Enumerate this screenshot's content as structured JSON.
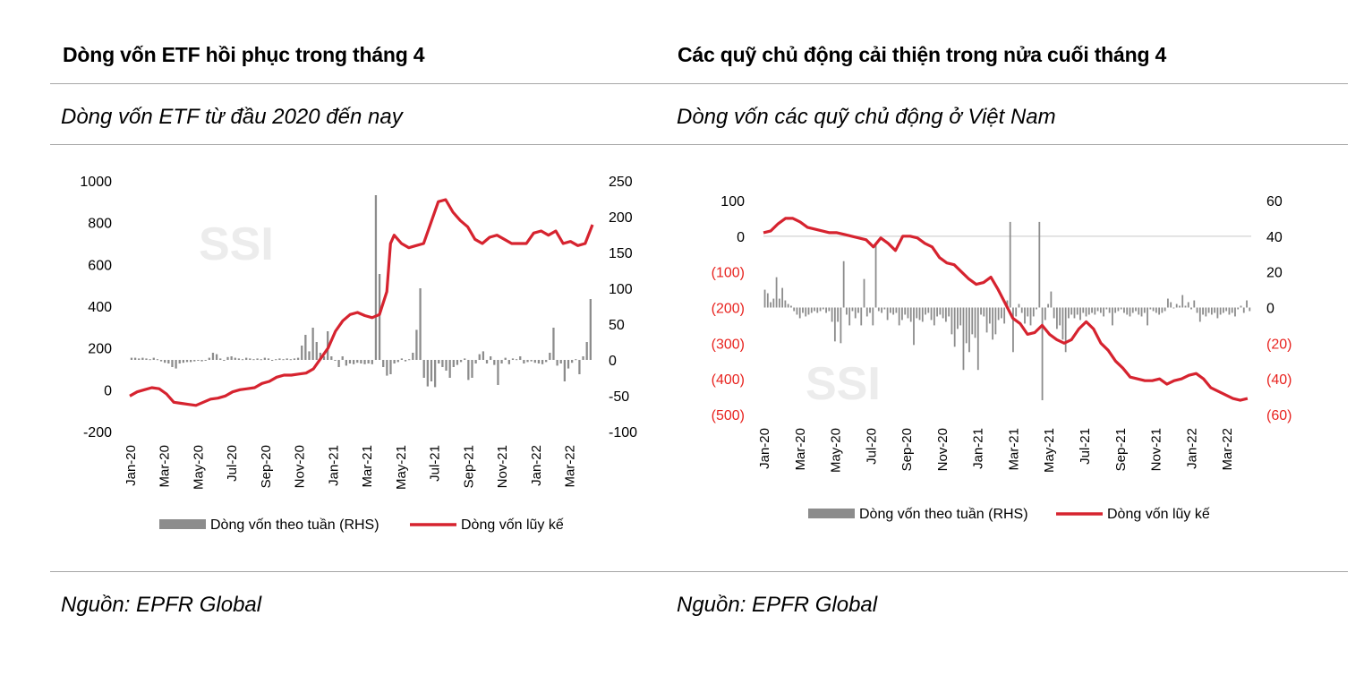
{
  "left": {
    "title": "Dòng vốn ETF hồi phục trong tháng 4",
    "subtitle": "Dòng vốn ETF từ đầu 2020 đến nay",
    "source": "Nguồn: EPFR Global",
    "watermark": "SSI"
  },
  "right": {
    "title": "Các quỹ chủ động cải thiện trong nửa cuối tháng 4",
    "subtitle": "Dòng vốn các quỹ chủ động ở Việt Nam",
    "source": "Nguồn: EPFR Global",
    "watermark": "SSI"
  },
  "chart_data": [
    {
      "type": "bar+line",
      "x_labels": [
        "Jan-20",
        "Mar-20",
        "May-20",
        "Jul-20",
        "Sep-20",
        "Nov-20",
        "Jan-21",
        "Mar-21",
        "May-21",
        "Jul-21",
        "Sep-21",
        "Nov-21",
        "Jan-22",
        "Mar-22"
      ],
      "y_left": {
        "ticks": [
          "1000",
          "800",
          "600",
          "400",
          "200",
          "0",
          "-200"
        ],
        "range": [
          -200,
          1000
        ]
      },
      "y_right": {
        "ticks": [
          "250",
          "200",
          "150",
          "100",
          "50",
          "0",
          "-50",
          "-100"
        ],
        "range": [
          -100,
          250
        ]
      },
      "series": [
        {
          "name": "Dòng vốn theo tuần (RHS)",
          "type": "bar",
          "axis": "right",
          "color": "#8c8c8c",
          "values": [
            3,
            3,
            2,
            3,
            2,
            1,
            3,
            1,
            -2,
            -4,
            -5,
            -10,
            -12,
            -5,
            -4,
            -3,
            -3,
            -2,
            -1,
            -2,
            -1,
            3,
            10,
            8,
            2,
            -1,
            4,
            5,
            3,
            2,
            1,
            3,
            2,
            1,
            2,
            1,
            3,
            2,
            -1,
            1,
            2,
            1,
            2,
            1,
            2,
            3,
            20,
            35,
            12,
            45,
            25,
            10,
            5,
            40,
            5,
            0,
            -10,
            5,
            -8,
            -5,
            -6,
            -4,
            -5,
            -6,
            -5,
            -6,
            230,
            120,
            -10,
            -22,
            -20,
            -5,
            -3,
            2,
            -2,
            1,
            10,
            42,
            100,
            -25,
            -37,
            -30,
            -38,
            -5,
            -10,
            -15,
            -25,
            -10,
            -7,
            -3,
            2,
            -28,
            -25,
            -5,
            8,
            12,
            -5,
            5,
            -7,
            -35,
            -5,
            3,
            -6,
            2,
            1,
            5,
            -5,
            -3,
            -2,
            -4,
            -5,
            -6,
            -3,
            10,
            45,
            -8,
            -5,
            -30,
            -12,
            -4,
            1,
            -20,
            5,
            25,
            85
          ],
          "scale_note": "weekly"
        },
        {
          "name": "Dòng vốn lũy kế",
          "type": "line",
          "axis": "left",
          "color": "#d6232f",
          "points": [
            [
              0,
              -30
            ],
            [
              2,
              -10
            ],
            [
              4,
              0
            ],
            [
              6,
              10
            ],
            [
              8,
              5
            ],
            [
              10,
              -20
            ],
            [
              12,
              -60
            ],
            [
              14,
              -65
            ],
            [
              16,
              -70
            ],
            [
              18,
              -75
            ],
            [
              20,
              -60
            ],
            [
              22,
              -45
            ],
            [
              24,
              -40
            ],
            [
              26,
              -30
            ],
            [
              28,
              -10
            ],
            [
              30,
              0
            ],
            [
              32,
              5
            ],
            [
              34,
              10
            ],
            [
              36,
              30
            ],
            [
              38,
              40
            ],
            [
              40,
              60
            ],
            [
              42,
              70
            ],
            [
              44,
              70
            ],
            [
              46,
              75
            ],
            [
              48,
              80
            ],
            [
              50,
              100
            ],
            [
              52,
              150
            ],
            [
              54,
              200
            ],
            [
              56,
              280
            ],
            [
              58,
              330
            ],
            [
              60,
              360
            ],
            [
              62,
              370
            ],
            [
              64,
              355
            ],
            [
              66,
              345
            ],
            [
              68,
              360
            ],
            [
              70,
              470
            ],
            [
              71,
              700
            ],
            [
              72,
              740
            ],
            [
              74,
              700
            ],
            [
              76,
              680
            ],
            [
              78,
              690
            ],
            [
              80,
              700
            ],
            [
              82,
              800
            ],
            [
              84,
              900
            ],
            [
              86,
              910
            ],
            [
              88,
              850
            ],
            [
              90,
              810
            ],
            [
              92,
              780
            ],
            [
              94,
              720
            ],
            [
              96,
              700
            ],
            [
              98,
              730
            ],
            [
              100,
              740
            ],
            [
              102,
              720
            ],
            [
              104,
              700
            ],
            [
              106,
              700
            ],
            [
              108,
              700
            ],
            [
              110,
              750
            ],
            [
              112,
              760
            ],
            [
              114,
              740
            ],
            [
              116,
              760
            ],
            [
              118,
              700
            ],
            [
              120,
              710
            ],
            [
              122,
              690
            ],
            [
              124,
              700
            ],
            [
              126,
              790
            ]
          ],
          "x_index_count": 127
        }
      ],
      "legend": {
        "position": "bottom",
        "items": [
          "Dòng vốn theo tuần (RHS)",
          "Dòng vốn lũy kế"
        ]
      }
    },
    {
      "type": "bar+line",
      "x_labels": [
        "Jan-20",
        "Mar-20",
        "May-20",
        "Jul-20",
        "Sep-20",
        "Nov-20",
        "Jan-21",
        "Mar-21",
        "May-21",
        "Jul-21",
        "Sep-21",
        "Nov-21",
        "Jan-22",
        "Mar-22"
      ],
      "y_left": {
        "ticks": [
          "100",
          "0",
          "(100)",
          "(200)",
          "(300)",
          "(400)",
          "(500)"
        ],
        "range": [
          -500,
          100
        ],
        "negative_color": "#e8231f"
      },
      "y_right": {
        "ticks": [
          "60",
          "40",
          "20",
          "0",
          "(20)",
          "(40)",
          "(60)"
        ],
        "range": [
          -60,
          60
        ],
        "negative_color": "#e8231f"
      },
      "series": [
        {
          "name": "Dòng vốn theo tuần (RHS)",
          "type": "bar",
          "axis": "right",
          "color": "#8c8c8c",
          "values": [
            10,
            8,
            3,
            5,
            17,
            5,
            11,
            4,
            2,
            1,
            -2,
            -4,
            -6,
            -3,
            -5,
            -4,
            -3,
            -2,
            -3,
            -2,
            -1,
            -3,
            -2,
            -8,
            -19,
            -8,
            -20,
            26,
            -4,
            -10,
            -2,
            -6,
            -3,
            -10,
            16,
            -5,
            -3,
            -10,
            36,
            -2,
            -3,
            -1,
            -7,
            -3,
            -4,
            -3,
            -10,
            -7,
            -4,
            -6,
            -8,
            -21,
            -6,
            -7,
            -8,
            -4,
            -3,
            -7,
            -10,
            -5,
            -4,
            -6,
            -8,
            -5,
            -15,
            -22,
            -12,
            -10,
            -35,
            -20,
            -25,
            -15,
            -17,
            -35,
            -4,
            -5,
            -14,
            -9,
            -18,
            -15,
            -7,
            -6,
            -9,
            4,
            48,
            -25,
            -5,
            2,
            -3,
            -9,
            -5,
            -10,
            -5,
            -1,
            48,
            -52,
            -7,
            2,
            9,
            -6,
            -12,
            -10,
            -18,
            -25,
            -6,
            -4,
            -6,
            -4,
            -7,
            -3,
            -5,
            -4,
            -3,
            -4,
            -2,
            -3,
            -5,
            -1,
            -3,
            -10,
            -3,
            -2,
            -1,
            -3,
            -4,
            -5,
            -3,
            -2,
            -4,
            -5,
            -3,
            -10,
            -1,
            -2,
            -3,
            -4,
            -3,
            -2,
            5,
            3,
            0,
            2,
            1,
            7,
            1,
            3,
            -1,
            4,
            -3,
            -8,
            -4,
            -5,
            -3,
            -4,
            -3,
            -6,
            -4,
            -3,
            -2,
            -4,
            -3,
            -5,
            -1,
            1,
            -3,
            4,
            -2
          ],
          "scale_note": "weekly"
        },
        {
          "name": "Dòng vốn lũy kế",
          "type": "line",
          "axis": "left",
          "color": "#d6232f",
          "points": [
            [
              0,
              10
            ],
            [
              2,
              15
            ],
            [
              4,
              35
            ],
            [
              6,
              50
            ],
            [
              8,
              50
            ],
            [
              10,
              40
            ],
            [
              12,
              25
            ],
            [
              14,
              20
            ],
            [
              16,
              15
            ],
            [
              18,
              10
            ],
            [
              20,
              10
            ],
            [
              22,
              5
            ],
            [
              24,
              0
            ],
            [
              26,
              -5
            ],
            [
              28,
              -10
            ],
            [
              30,
              -30
            ],
            [
              32,
              -5
            ],
            [
              34,
              -20
            ],
            [
              36,
              -40
            ],
            [
              38,
              0
            ],
            [
              40,
              0
            ],
            [
              42,
              -5
            ],
            [
              44,
              -20
            ],
            [
              46,
              -30
            ],
            [
              48,
              -60
            ],
            [
              50,
              -75
            ],
            [
              52,
              -80
            ],
            [
              54,
              -100
            ],
            [
              56,
              -120
            ],
            [
              58,
              -135
            ],
            [
              60,
              -130
            ],
            [
              62,
              -115
            ],
            [
              64,
              -150
            ],
            [
              66,
              -190
            ],
            [
              68,
              -230
            ],
            [
              70,
              -245
            ],
            [
              72,
              -275
            ],
            [
              74,
              -270
            ],
            [
              76,
              -250
            ],
            [
              78,
              -275
            ],
            [
              80,
              -290
            ],
            [
              82,
              -300
            ],
            [
              84,
              -290
            ],
            [
              86,
              -260
            ],
            [
              88,
              -240
            ],
            [
              90,
              -260
            ],
            [
              92,
              -300
            ],
            [
              94,
              -320
            ],
            [
              96,
              -350
            ],
            [
              98,
              -370
            ],
            [
              100,
              -395
            ],
            [
              102,
              -400
            ],
            [
              104,
              -405
            ],
            [
              106,
              -405
            ],
            [
              108,
              -400
            ],
            [
              110,
              -415
            ],
            [
              112,
              -405
            ],
            [
              114,
              -400
            ],
            [
              116,
              -390
            ],
            [
              118,
              -385
            ],
            [
              120,
              -400
            ],
            [
              122,
              -425
            ],
            [
              124,
              -435
            ],
            [
              126,
              -445
            ],
            [
              128,
              -455
            ],
            [
              130,
              -460
            ],
            [
              132,
              -455
            ]
          ],
          "x_index_count": 134
        }
      ],
      "legend": {
        "position": "bottom",
        "items": [
          "Dòng vốn theo tuần (RHS)",
          "Dòng vốn lũy kế"
        ]
      }
    }
  ]
}
